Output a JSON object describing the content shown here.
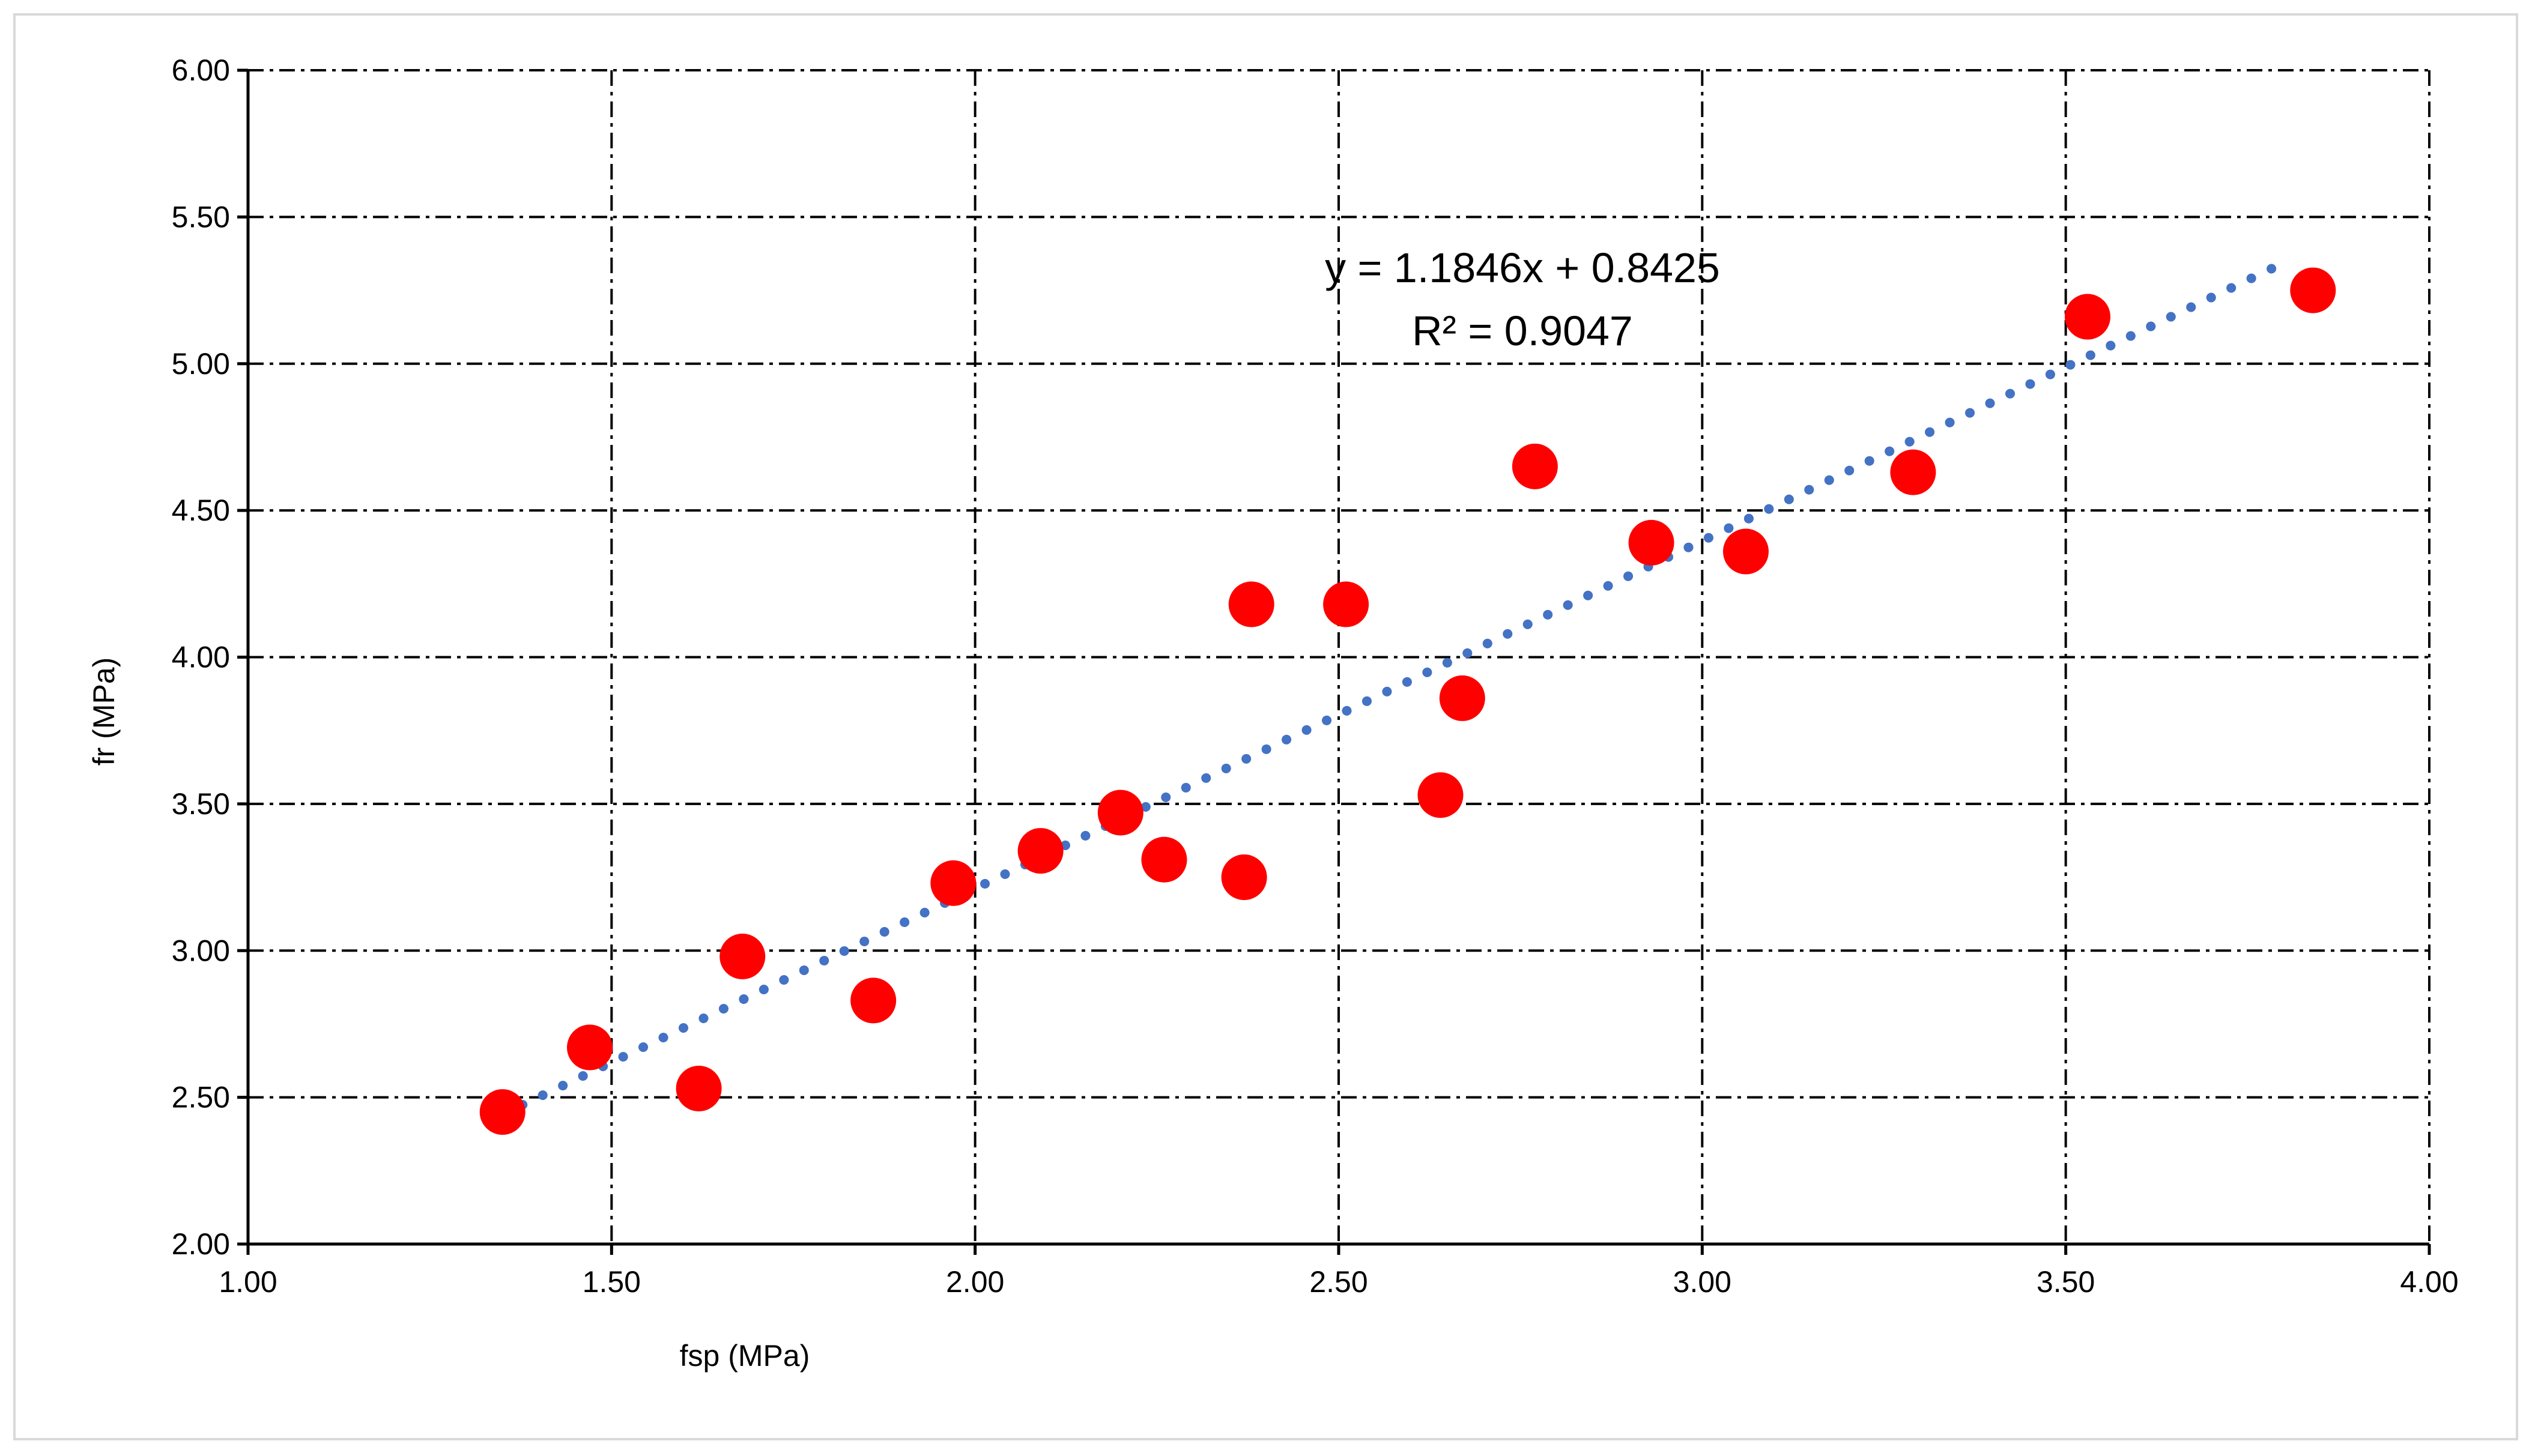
{
  "chart_data": {
    "type": "scatter",
    "title": "",
    "xlabel": "fsp (MPa)",
    "ylabel": "fr (MPa)",
    "xlim": [
      1.0,
      4.0
    ],
    "ylim": [
      2.0,
      6.0
    ],
    "x_ticks": [
      1.0,
      1.5,
      2.0,
      2.5,
      3.0,
      3.5,
      4.0
    ],
    "y_ticks": [
      2.0,
      2.5,
      3.0,
      3.5,
      4.0,
      4.5,
      5.0,
      5.5,
      6.0
    ],
    "x_tick_labels": [
      "1.00",
      "1.50",
      "2.00",
      "2.50",
      "3.00",
      "3.50",
      "4.00"
    ],
    "y_tick_labels": [
      "2.00",
      "2.50",
      "3.00",
      "3.50",
      "4.00",
      "4.50",
      "5.00",
      "5.50",
      "6.00"
    ],
    "grid": true,
    "grid_style": "dash-dot",
    "legend": false,
    "series": [
      {
        "color": "#ff0000",
        "marker": "circle",
        "points": [
          [
            1.35,
            2.45
          ],
          [
            1.47,
            2.67
          ],
          [
            1.62,
            2.53
          ],
          [
            1.68,
            2.98
          ],
          [
            1.86,
            2.83
          ],
          [
            1.97,
            3.23
          ],
          [
            2.09,
            3.34
          ],
          [
            2.2,
            3.47
          ],
          [
            2.26,
            3.31
          ],
          [
            2.37,
            3.25
          ],
          [
            2.38,
            4.18
          ],
          [
            2.51,
            4.18
          ],
          [
            2.64,
            3.53
          ],
          [
            2.67,
            3.86
          ],
          [
            2.77,
            4.65
          ],
          [
            2.93,
            4.39
          ],
          [
            3.06,
            4.36
          ],
          [
            3.29,
            4.63
          ],
          [
            3.53,
            5.16
          ],
          [
            3.84,
            5.25
          ]
        ]
      }
    ],
    "trendline": {
      "type": "linear",
      "slope": 1.1846,
      "intercept": 0.8425,
      "x_range": [
        1.35,
        3.81
      ],
      "color": "#4472c4",
      "style": "dotted"
    },
    "annotations": {
      "equation": "y = 1.1846x + 0.8425",
      "r_squared": "R² = 0.9047"
    }
  }
}
